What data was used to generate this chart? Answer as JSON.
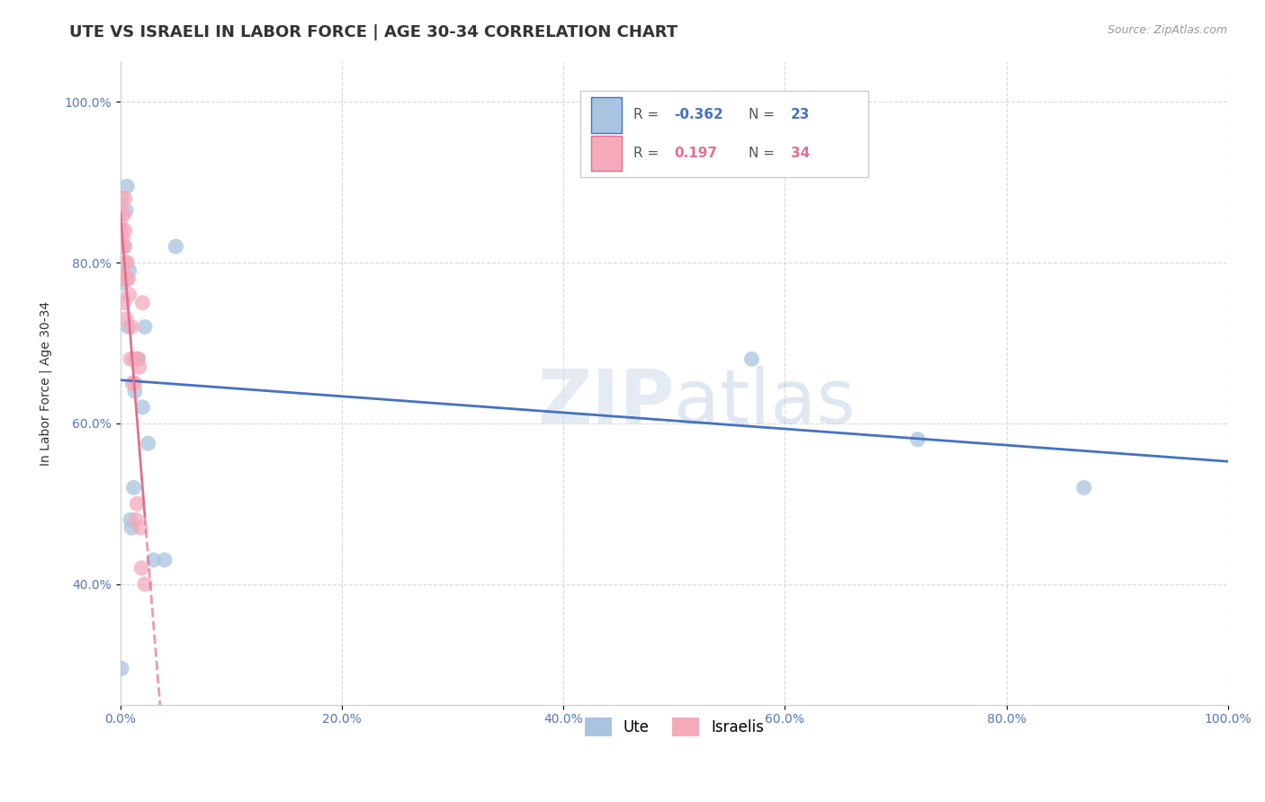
{
  "title": "UTE VS ISRAELI IN LABOR FORCE | AGE 30-34 CORRELATION CHART",
  "source": "Source: ZipAtlas.com",
  "ylabel": "In Labor Force | Age 30-34",
  "watermark": "ZIPatlas",
  "ute_R": -0.362,
  "ute_N": 23,
  "israeli_R": 0.197,
  "israeli_N": 34,
  "ute_color": "#a8c4e0",
  "israeli_color": "#f4aabb",
  "ute_line_color": "#4472c4",
  "israeli_line_color": "#e07090",
  "ute_points_x": [
    0.001,
    0.001,
    0.003,
    0.004,
    0.005,
    0.006,
    0.007,
    0.008,
    0.009,
    0.01,
    0.012,
    0.013,
    0.015,
    0.016,
    0.02,
    0.022,
    0.025,
    0.03,
    0.04,
    0.05,
    0.57,
    0.72,
    0.87
  ],
  "ute_points_y": [
    0.295,
    0.785,
    0.775,
    0.82,
    0.865,
    0.895,
    0.72,
    0.79,
    0.48,
    0.47,
    0.52,
    0.64,
    0.68,
    0.68,
    0.62,
    0.72,
    0.575,
    0.43,
    0.43,
    0.82,
    0.68,
    0.58,
    0.52
  ],
  "israeli_points_x": [
    0.0,
    0.0,
    0.0,
    0.0,
    0.001,
    0.001,
    0.001,
    0.001,
    0.002,
    0.002,
    0.003,
    0.003,
    0.003,
    0.004,
    0.004,
    0.005,
    0.005,
    0.006,
    0.006,
    0.007,
    0.008,
    0.009,
    0.01,
    0.011,
    0.012,
    0.013,
    0.014,
    0.015,
    0.016,
    0.017,
    0.018,
    0.019,
    0.02,
    0.022
  ],
  "israeli_points_y": [
    0.83,
    0.85,
    0.86,
    0.87,
    0.78,
    0.82,
    0.84,
    0.88,
    0.78,
    0.83,
    0.75,
    0.82,
    0.86,
    0.84,
    0.88,
    0.73,
    0.8,
    0.78,
    0.8,
    0.78,
    0.76,
    0.68,
    0.72,
    0.65,
    0.68,
    0.65,
    0.48,
    0.5,
    0.68,
    0.67,
    0.47,
    0.42,
    0.75,
    0.4
  ],
  "xlim": [
    0.0,
    1.0
  ],
  "ylim": [
    0.25,
    1.05
  ],
  "x_ticks": [
    0.0,
    0.2,
    0.4,
    0.6,
    0.8,
    1.0
  ],
  "x_tick_labels": [
    "0.0%",
    "20.0%",
    "40.0%",
    "60.0%",
    "80.0%",
    "100.0%"
  ],
  "y_ticks": [
    0.4,
    0.6,
    0.8,
    1.0
  ],
  "y_tick_labels": [
    "40.0%",
    "60.0%",
    "80.0%",
    "100.0%"
  ],
  "grid_color": "#d0d0d0",
  "background_color": "#ffffff",
  "title_fontsize": 13,
  "label_fontsize": 10,
  "tick_fontsize": 10
}
